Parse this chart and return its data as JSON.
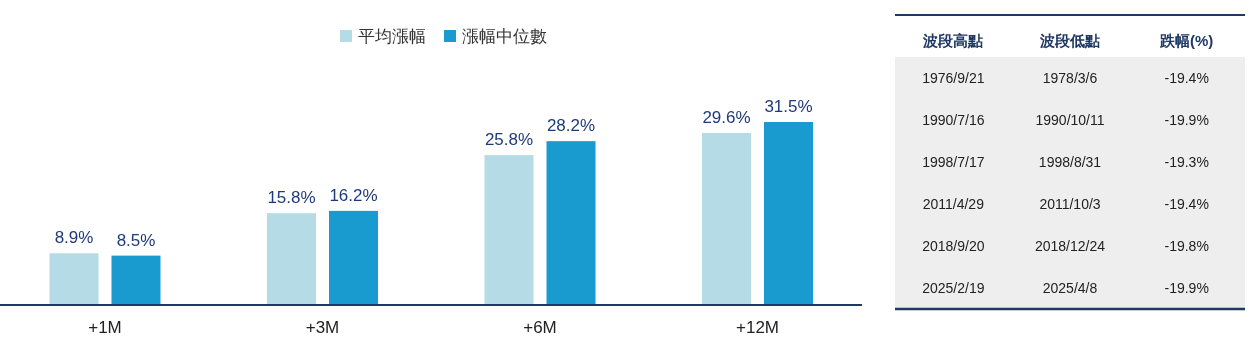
{
  "chart_data": [
    {
      "type": "bar",
      "categories": [
        "+1M",
        "+3M",
        "+6M",
        "+12M"
      ],
      "series": [
        {
          "name": "平均漲幅",
          "color": "#b4dbe6",
          "values": [
            8.9,
            15.8,
            25.8,
            29.6
          ],
          "value_labels": [
            "8.9%",
            "15.8%",
            "25.8%",
            "29.6%"
          ]
        },
        {
          "name": "漲幅中位數",
          "color": "#1a9bd0",
          "values": [
            8.5,
            16.2,
            28.2,
            31.5
          ],
          "value_labels": [
            "8.5%",
            "16.2%",
            "28.2%",
            "31.5%"
          ]
        }
      ],
      "legend": "top"
    },
    {
      "type": "other",
      "categories": [
        "波段高點",
        "波段低點",
        "跌幅(%)"
      ],
      "annotations": [
        "1976/9/21",
        "1978/3/6",
        "-19.4%",
        "1990/7/16",
        "1990/10/11",
        "-19.9%",
        "1998/7/17",
        "1998/8/31",
        "-19.3%",
        "2011/4/29",
        "2011/10/3",
        "-19.4%",
        "2018/9/20",
        "2018/12/24",
        "-19.8%",
        "2025/2/19",
        "2025/4/8",
        "-19.9%"
      ]
    }
  ]
}
